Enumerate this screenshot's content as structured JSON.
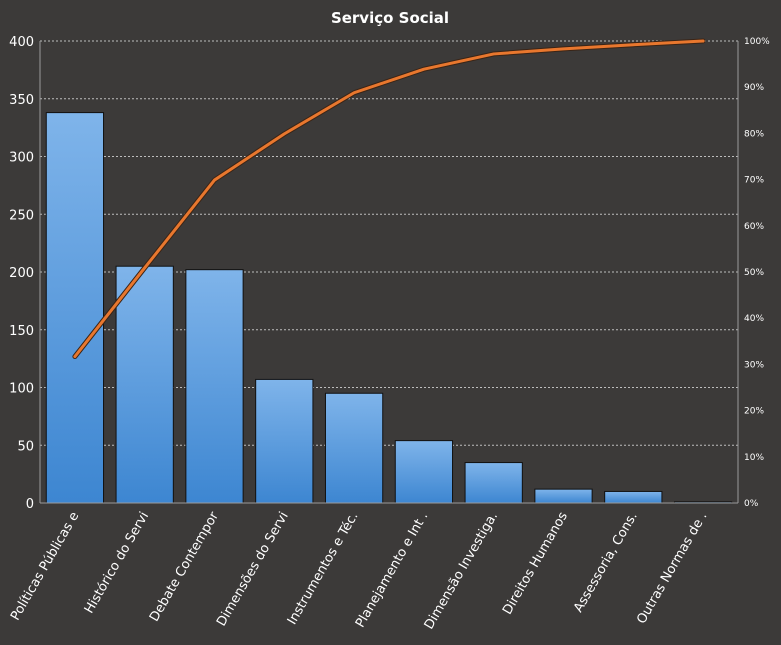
{
  "chart_data": {
    "type": "bar",
    "title": "Serviço Social",
    "categories": [
      "Políticas Públicas e",
      "Histórico do Servi",
      "Debate Contempor",
      "Dimensões do Servi",
      "Instrumentos e Téc.",
      "Planejamento e Int .",
      "Dimensão Investiga.",
      "Direitos Humanos",
      "Assessoria, Cons.",
      "Outras Normas de ."
    ],
    "series": [
      {
        "type": "bar",
        "values": [
          338,
          205,
          202,
          107,
          95,
          54,
          35,
          12,
          10,
          1
        ],
        "color": "#4a90d9"
      },
      {
        "type": "line",
        "axis": "right",
        "values": [
          31.7,
          50.9,
          69.9,
          79.9,
          88.8,
          93.9,
          97.2,
          98.3,
          99.2,
          100
        ],
        "color": "#e8772e"
      }
    ],
    "ylim": [
      0,
      400
    ],
    "yticks": [
      "0",
      "50",
      "100",
      "150",
      "200",
      "250",
      "300",
      "350",
      "400"
    ],
    "y2lim": [
      0,
      100
    ],
    "y2ticks": [
      "0%",
      "10%",
      "20%",
      "30%",
      "40%",
      "50%",
      "60%",
      "70%",
      "80%",
      "90%",
      "100%"
    ],
    "grid": true,
    "xlabel": "",
    "ylabel": ""
  }
}
